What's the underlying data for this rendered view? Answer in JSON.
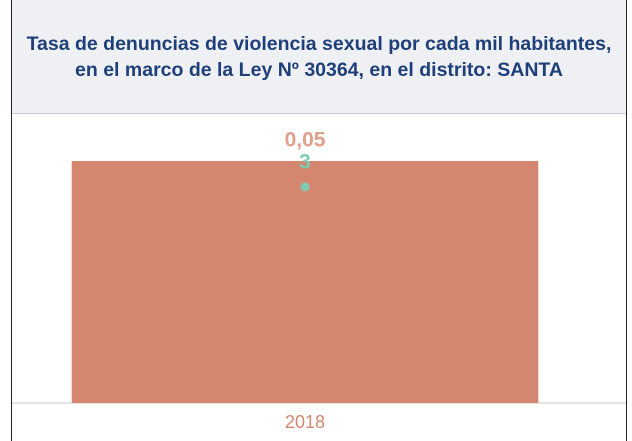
{
  "chart_data": {
    "type": "bar",
    "title": "Tasa de denuncias de violencia sexual por cada mil habitantes, en el marco de la Ley Nº 30364, en el distrito: SANTA",
    "categories": [
      "2018"
    ],
    "series": [
      {
        "type": "bar",
        "color": "#d5866f",
        "label_color": "#e0a08c",
        "values": [
          0.05
        ],
        "value_labels": [
          "0,05"
        ]
      },
      {
        "type": "line",
        "axis": "y2",
        "color": "#7fcab0",
        "values": [
          3
        ]
      }
    ],
    "ylim": [
      0,
      0.05
    ],
    "y2lim": [
      0,
      3.36
    ]
  }
}
